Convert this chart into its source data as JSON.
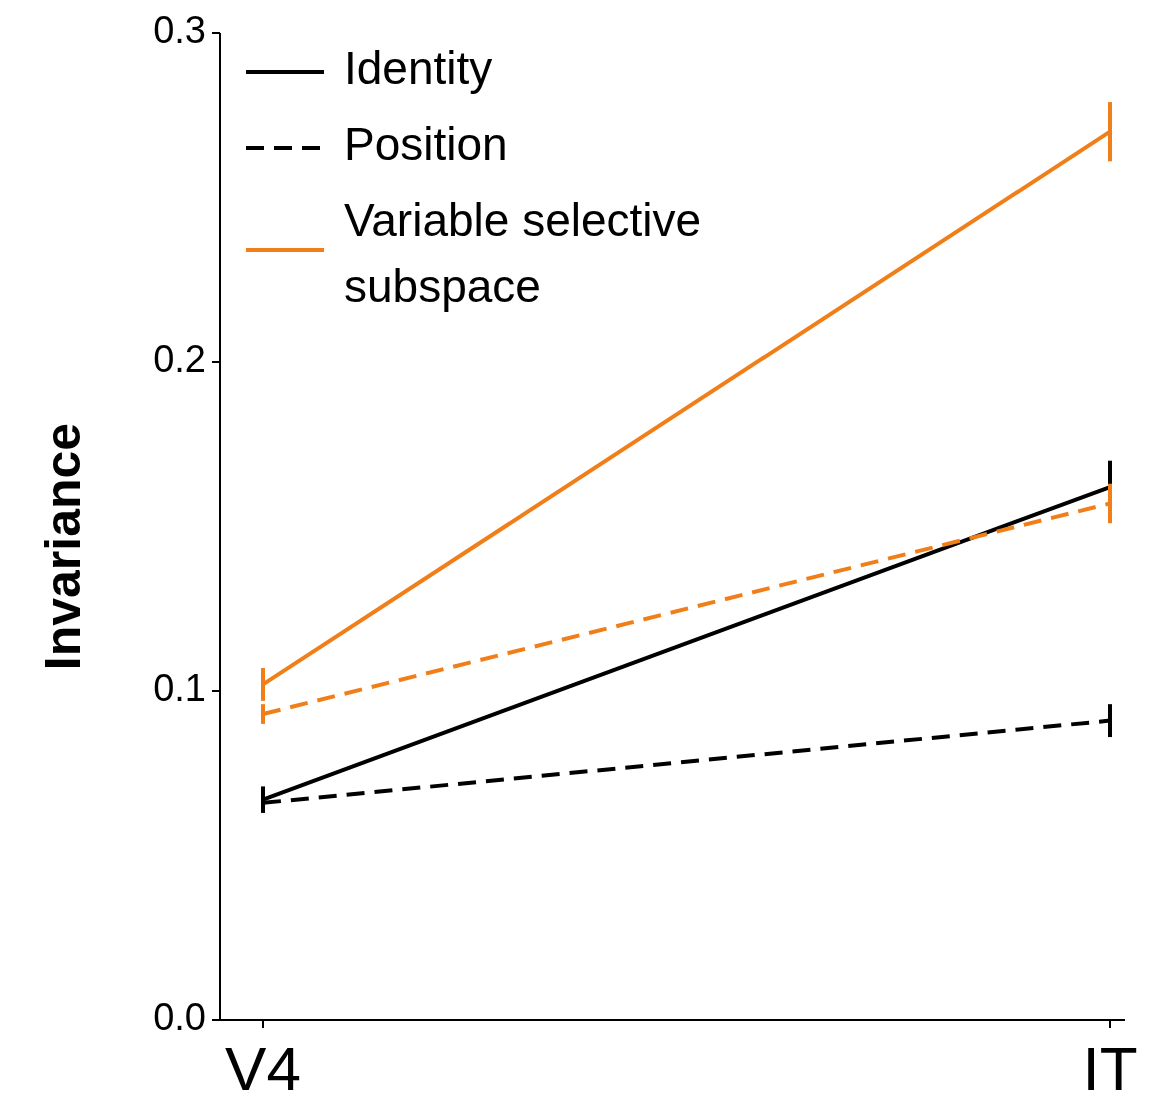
{
  "chart_data": {
    "type": "line",
    "ylabel": "Invariance",
    "categories": [
      "V4",
      "IT"
    ],
    "ylim": [
      0,
      0.3
    ],
    "yticks": [
      {
        "value": 0,
        "label": "0.0"
      },
      0.1,
      0.2,
      0.3
    ],
    "legend": "top left",
    "grid": false,
    "series": [
      {
        "name": "Identity",
        "color": "#000000",
        "line_style": "solid",
        "values": [
          0.067,
          0.162
        ],
        "errors": [
          0.004,
          0.008
        ]
      },
      {
        "name": "Position",
        "color": "#000000",
        "line_style": "dashed",
        "values": [
          0.066,
          0.091
        ],
        "errors": [
          0.003,
          0.005
        ]
      },
      {
        "name": "Variable selective subspace",
        "color": "#f07f1a",
        "line_style": "solid",
        "values": [
          0.102,
          0.27
        ],
        "errors": [
          0.005,
          0.009
        ]
      },
      {
        "color": "#f07f1a",
        "line_style": "dashed",
        "values": [
          0.093,
          0.157
        ],
        "errors": [
          0.003,
          0.006
        ]
      }
    ]
  }
}
